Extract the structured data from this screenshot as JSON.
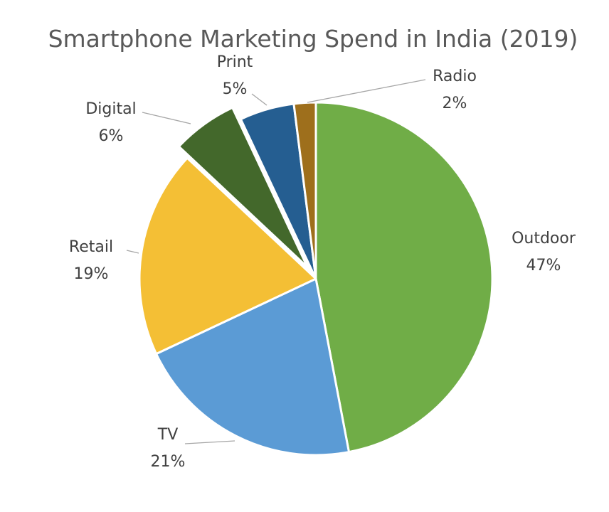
{
  "chart_data": {
    "type": "pie",
    "title": "Smartphone Marketing Spend in India (2019)",
    "slices": [
      {
        "name": "Outdoor",
        "value": 47,
        "label": "47%",
        "color": "#70ad47",
        "exploded": false
      },
      {
        "name": "TV",
        "value": 21,
        "label": "21%",
        "color": "#5b9bd5",
        "exploded": false
      },
      {
        "name": "Retail",
        "value": 19,
        "label": "19%",
        "color": "#f4bf35",
        "exploded": false
      },
      {
        "name": "Digital",
        "value": 6,
        "label": "6%",
        "color": "#43682b",
        "exploded": true
      },
      {
        "name": "Print",
        "value": 5,
        "label": "5%",
        "color": "#255e91",
        "exploded": false
      },
      {
        "name": "Radio",
        "value": 2,
        "label": "2%",
        "color": "#9e6f1c",
        "exploded": false
      }
    ],
    "start": "12 o'clock",
    "direction": "clockwise",
    "legend": "none"
  }
}
